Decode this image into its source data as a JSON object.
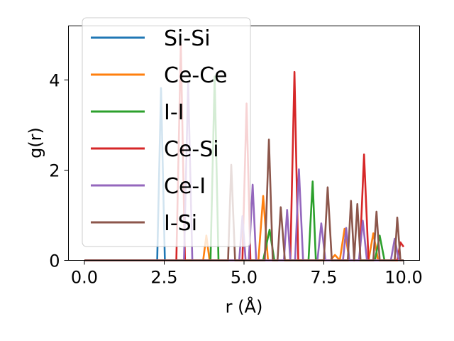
{
  "chart_data": {
    "type": "line",
    "xlabel": "r (Å)",
    "ylabel": "g(r)",
    "xlim": [
      -0.5,
      10.5
    ],
    "ylim": [
      0,
      5.2
    ],
    "xticks": [
      0.0,
      2.5,
      5.0,
      7.5,
      10.0
    ],
    "xtick_labels": [
      "0.0",
      "2.5",
      "5.0",
      "7.5",
      "10.0"
    ],
    "yticks": [
      0,
      2,
      4
    ],
    "ytick_labels": [
      "0",
      "2",
      "4"
    ],
    "grid": false,
    "legend_position": "upper-left",
    "series": [
      {
        "name": "Si-Si",
        "color": "#1f77b4",
        "x": [
          0,
          2.28,
          2.4,
          2.52,
          5.0,
          10
        ],
        "y": [
          0,
          0,
          3.82,
          0,
          0,
          0
        ]
      },
      {
        "name": "Ce-Ce",
        "color": "#ff7f0e",
        "x": [
          0,
          3.72,
          3.82,
          3.92,
          5.45,
          5.6,
          5.75,
          7.7,
          7.85,
          8.0,
          8.15,
          8.3,
          8.45,
          8.9,
          9.05,
          9.2,
          9.5,
          10
        ],
        "y": [
          0,
          0,
          0.55,
          0,
          0,
          1.43,
          0,
          0,
          0.12,
          0,
          0.7,
          0,
          0,
          0,
          0.6,
          0,
          0,
          0
        ]
      },
      {
        "name": "I-I",
        "color": "#2ca02c",
        "x": [
          0,
          3.95,
          4.08,
          4.2,
          5.6,
          5.8,
          5.95,
          6.8,
          7.02,
          7.15,
          7.25,
          9.1,
          9.25,
          9.4,
          10
        ],
        "y": [
          0,
          0,
          4.08,
          0,
          0,
          0.68,
          0,
          0,
          0,
          1.75,
          0,
          0,
          0.55,
          0,
          0
        ]
      },
      {
        "name": "Ce-Si",
        "color": "#d62728",
        "x": [
          0,
          2.88,
          3.02,
          3.15,
          4.95,
          5.08,
          5.2,
          6.45,
          6.58,
          6.7,
          8.62,
          8.76,
          8.9,
          9.8,
          9.9,
          10
        ],
        "y": [
          0,
          0,
          4.8,
          0,
          0,
          3.48,
          0,
          0,
          4.18,
          0,
          0,
          2.35,
          0,
          0,
          0.4,
          0.3
        ]
      },
      {
        "name": "Ce-I",
        "color": "#9467bd",
        "x": [
          0,
          3.12,
          3.25,
          3.38,
          4.85,
          4.95,
          5.05,
          5.15,
          5.27,
          5.38,
          6.25,
          6.35,
          6.45,
          6.6,
          6.72,
          6.85,
          7.3,
          7.42,
          7.55,
          8.1,
          8.2,
          8.3,
          8.6,
          8.72,
          8.85,
          9.6,
          9.72,
          9.85,
          10
        ],
        "y": [
          0,
          0,
          3.95,
          0,
          0,
          0.98,
          0,
          0,
          1.68,
          0,
          0,
          1.12,
          0,
          0,
          2.02,
          0,
          0,
          0.82,
          0,
          0,
          0.72,
          0,
          0,
          0.88,
          0,
          0,
          0.48,
          0,
          0
        ]
      },
      {
        "name": "I-Si",
        "color": "#8c564b",
        "x": [
          0,
          4.5,
          4.6,
          4.72,
          5.65,
          5.78,
          5.9,
          6.05,
          6.15,
          6.28,
          7.5,
          7.62,
          7.75,
          8.25,
          8.35,
          8.45,
          8.55,
          8.65,
          8.75,
          9.05,
          9.15,
          9.25,
          9.72,
          9.8,
          9.9,
          10
        ],
        "y": [
          0,
          0,
          2.12,
          0,
          0,
          2.68,
          0,
          0,
          1.18,
          0,
          0,
          1.62,
          0,
          0,
          1.32,
          0,
          1.25,
          0,
          0,
          0,
          1.08,
          0,
          0,
          0.95,
          0,
          0
        ]
      }
    ]
  }
}
